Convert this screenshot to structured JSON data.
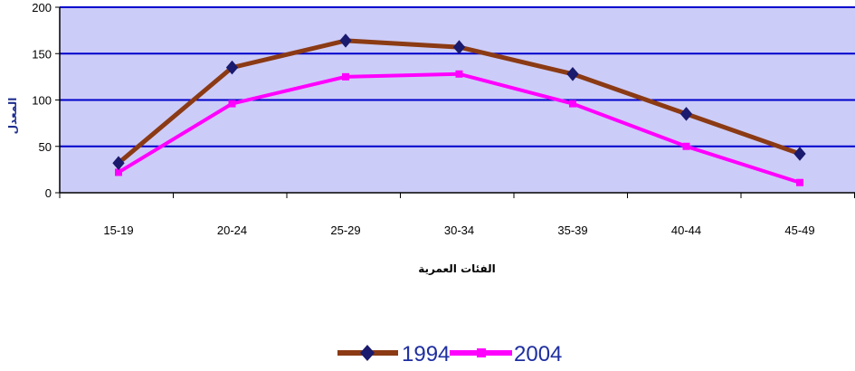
{
  "chart_data": {
    "type": "line",
    "title": "",
    "xlabel": "الفئات العمرية",
    "ylabel": "المعدل",
    "categories": [
      "15-19",
      "20-24",
      "25-29",
      "30-34",
      "35-39",
      "40-44",
      "45-49"
    ],
    "ylim": [
      0,
      200
    ],
    "yticks": [
      0,
      50,
      100,
      150,
      200
    ],
    "grid": true,
    "legend_position": "bottom",
    "series": [
      {
        "name": "1994",
        "values": [
          32,
          135,
          164,
          157,
          128,
          85,
          42
        ],
        "color": "#8b3a14",
        "marker": "diamond",
        "marker_color": "#1a1a6e"
      },
      {
        "name": "2004",
        "values": [
          22,
          96,
          125,
          128,
          96,
          50,
          11
        ],
        "color": "#ff00ff",
        "marker": "square",
        "marker_color": "#ff00ff"
      }
    ],
    "plot_background": "#ccccf8",
    "gridline_color": "#0000cc"
  }
}
